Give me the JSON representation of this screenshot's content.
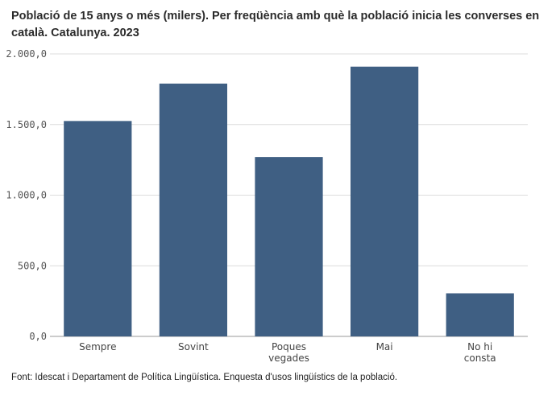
{
  "chart_data": {
    "type": "bar",
    "title": "Població de 15 anys o més (milers). Per freqüència amb què la població inicia les converses en català. Catalunya. 2023",
    "categories": [
      [
        "Sempre"
      ],
      [
        "Sovint"
      ],
      [
        "Poques",
        "vegades"
      ],
      [
        "Mai"
      ],
      [
        "No hi",
        "consta"
      ]
    ],
    "values": [
      1525,
      1790,
      1270,
      1910,
      305
    ],
    "ylim": [
      0,
      2000
    ],
    "yticks": [
      {
        "value": 0,
        "label": "0,0"
      },
      {
        "value": 500,
        "label": "500,0"
      },
      {
        "value": 1000,
        "label": "1.000,0"
      },
      {
        "value": 1500,
        "label": "1.500,0"
      },
      {
        "value": 2000,
        "label": "2.000,0"
      }
    ],
    "grid": true,
    "bar_color": "#3f5f83",
    "grid_color": "#dcdcdc"
  },
  "source": "Font: Idescat i Departament de Política Lingüística. Enquesta d'usos lingüístics de la població."
}
